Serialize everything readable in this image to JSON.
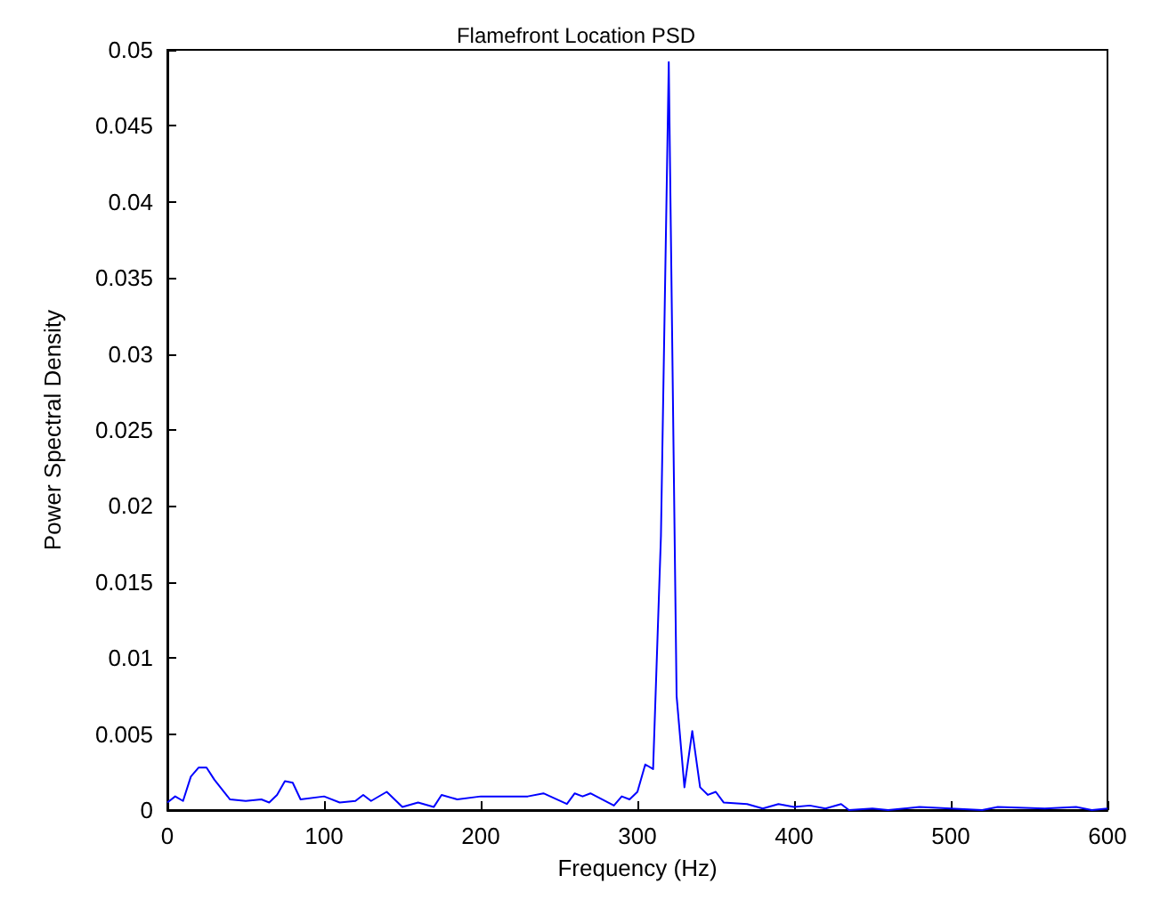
{
  "chart_data": {
    "type": "line",
    "title": "Flamefront Location PSD",
    "xlabel": "Frequency (Hz)",
    "ylabel": "Power Spectral Density",
    "xlim": [
      0,
      600
    ],
    "ylim": [
      0,
      0.05
    ],
    "xticks": [
      0,
      100,
      200,
      300,
      400,
      500,
      600
    ],
    "yticks": [
      0,
      0.005,
      0.01,
      0.015,
      0.02,
      0.025,
      0.03,
      0.035,
      0.04,
      0.045,
      0.05
    ],
    "grid": false,
    "marker": "none",
    "line_style": "solid",
    "series": [
      {
        "color": "#0000ff",
        "x": [
          0,
          5,
          10,
          15,
          20,
          25,
          30,
          40,
          50,
          60,
          65,
          70,
          75,
          80,
          85,
          100,
          110,
          120,
          125,
          130,
          140,
          150,
          160,
          170,
          175,
          185,
          200,
          230,
          240,
          255,
          260,
          265,
          270,
          285,
          290,
          295,
          300,
          305,
          310,
          315,
          320,
          325,
          330,
          335,
          340,
          345,
          350,
          355,
          370,
          380,
          390,
          400,
          410,
          420,
          430,
          435,
          450,
          460,
          480,
          500,
          520,
          530,
          560,
          580,
          590,
          600
        ],
        "values": [
          0.0005,
          0.0009,
          0.0006,
          0.0022,
          0.0028,
          0.0028,
          0.002,
          0.0007,
          0.0006,
          0.0007,
          0.0005,
          0.001,
          0.0019,
          0.0018,
          0.0007,
          0.0009,
          0.0005,
          0.0006,
          0.001,
          0.0006,
          0.0012,
          0.0002,
          0.0005,
          0.0002,
          0.001,
          0.0007,
          0.0009,
          0.0009,
          0.0011,
          0.0004,
          0.0011,
          0.0009,
          0.0011,
          0.0003,
          0.0009,
          0.0007,
          0.0012,
          0.003,
          0.0027,
          0.018,
          0.0492,
          0.0075,
          0.0015,
          0.0052,
          0.0015,
          0.001,
          0.0012,
          0.0005,
          0.0004,
          0.0001,
          0.0004,
          0.0002,
          0.0003,
          0.0001,
          0.0004,
          0,
          0.0001,
          0,
          0.0002,
          0.0001,
          0,
          0.0002,
          0.0001,
          0.0002,
          0,
          0.0001
        ]
      }
    ]
  }
}
